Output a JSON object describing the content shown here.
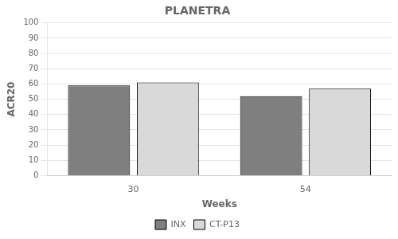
{
  "chart_data": {
    "type": "bar",
    "title": "PLANETRA",
    "xlabel": "Weeks",
    "ylabel": "ACR20",
    "categories": [
      "30",
      "54"
    ],
    "series": [
      {
        "name": "INX",
        "color": "#7f7f7f",
        "values": [
          59,
          52
        ]
      },
      {
        "name": "CT-P13",
        "color": "#d9d9d9",
        "values": [
          61,
          57
        ]
      }
    ],
    "ylim": [
      0,
      100
    ],
    "yticks": [
      0,
      10,
      20,
      30,
      40,
      50,
      60,
      70,
      80,
      90,
      100
    ],
    "grid": true,
    "legend": "bottom"
  }
}
